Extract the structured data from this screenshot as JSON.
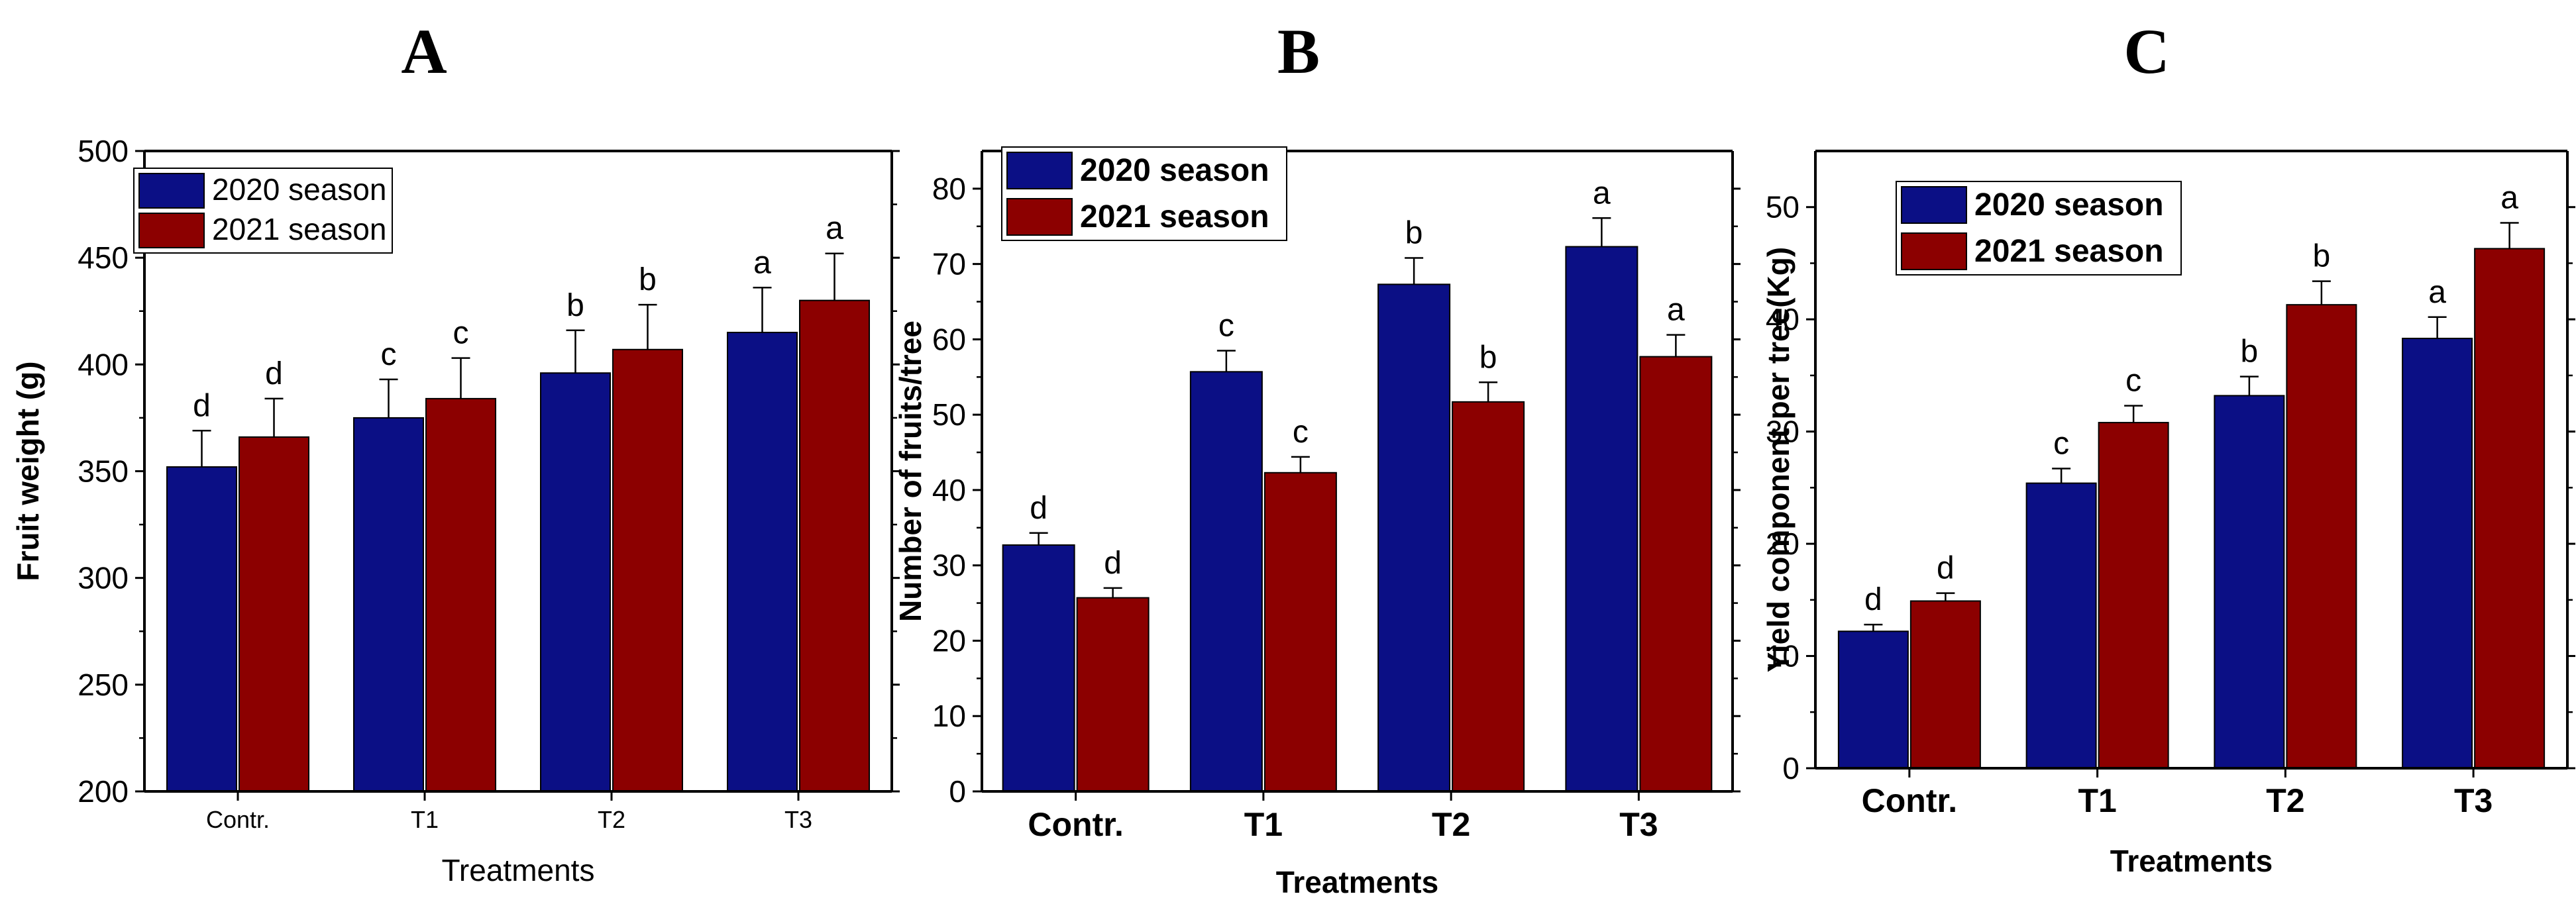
{
  "colors": {
    "series_2020": "#0b0f85",
    "series_2021": "#8c0000",
    "axis": "#000000",
    "errorbar": "#000000"
  },
  "chart_data": [
    {
      "panel": "A",
      "type": "bar",
      "title": "A",
      "xlabel": "Treatments",
      "ylabel": "Fruit weight (g)",
      "ylim": [
        200,
        500
      ],
      "yticks": [
        "200",
        "250",
        "300",
        "350",
        "400",
        "450",
        "500"
      ],
      "categories": [
        "Contr.",
        "T1",
        "T2",
        "T3"
      ],
      "series": [
        {
          "name": "2020 season",
          "values": [
            352,
            375,
            396,
            415
          ],
          "errors": [
            17,
            18,
            20,
            21
          ],
          "labels": [
            "d",
            "c",
            "b",
            "a"
          ]
        },
        {
          "name": "2021 season",
          "values": [
            366,
            384,
            407,
            430
          ],
          "errors": [
            18,
            19,
            21,
            22
          ],
          "labels": [
            "d",
            "c",
            "b",
            "a"
          ]
        }
      ],
      "legend": "top-left"
    },
    {
      "panel": "B",
      "type": "bar",
      "title": "B",
      "xlabel": "Treatments",
      "ylabel": "Number of fruits/tree",
      "ylim": [
        0,
        85
      ],
      "yticks": [
        "0",
        "10",
        "20",
        "30",
        "40",
        "50",
        "60",
        "70",
        "80"
      ],
      "categories": [
        "Contr.",
        "T1",
        "T2",
        "T3"
      ],
      "series": [
        {
          "name": "2020 season",
          "values": [
            32.7,
            55.7,
            67.3,
            72.3
          ],
          "errors": [
            1.6,
            2.8,
            3.5,
            3.8
          ],
          "labels": [
            "d",
            "c",
            "b",
            "a"
          ]
        },
        {
          "name": "2021 season",
          "values": [
            25.7,
            42.3,
            51.7,
            57.7
          ],
          "errors": [
            1.3,
            2.1,
            2.6,
            2.9
          ],
          "labels": [
            "d",
            "c",
            "b",
            "a"
          ]
        }
      ],
      "legend": "top-left"
    },
    {
      "panel": "C",
      "type": "bar",
      "title": "C",
      "xlabel": "Treatments",
      "ylabel": "Yield component per tree(Kg)",
      "ylim": [
        0,
        55
      ],
      "yticks": [
        "0",
        "10",
        "20",
        "30",
        "40",
        "50"
      ],
      "categories": [
        "Contr.",
        "T1",
        "T2",
        "T3"
      ],
      "series": [
        {
          "name": "2020 season",
          "values": [
            12.2,
            25.4,
            33.2,
            38.3
          ],
          "errors": [
            0.6,
            1.3,
            1.7,
            1.9
          ],
          "labels": [
            "d",
            "c",
            "b",
            "a"
          ]
        },
        {
          "name": "2021 season",
          "values": [
            14.9,
            30.8,
            41.3,
            46.3
          ],
          "errors": [
            0.7,
            1.5,
            2.1,
            2.3
          ],
          "labels": [
            "d",
            "c",
            "b",
            "a"
          ]
        }
      ],
      "legend": "top-left"
    }
  ]
}
